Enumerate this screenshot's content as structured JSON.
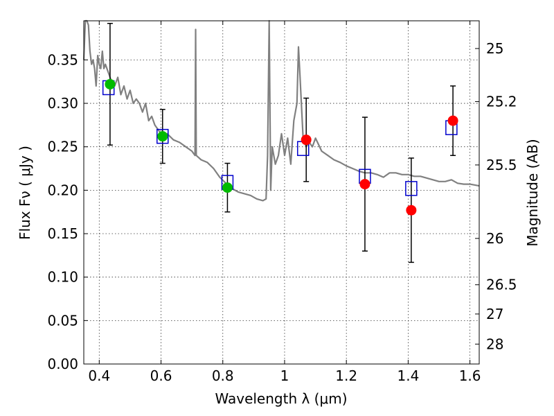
{
  "chart_data": {
    "type": "scatter",
    "xlabel": "Wavelength  λ (μm)",
    "ylabel": "Flux  Fν  ( μJy )",
    "ylabel_right": "Magnitude (AB)",
    "xlim": [
      0.35,
      1.63
    ],
    "ylim": [
      0.0,
      0.395
    ],
    "grid": true,
    "x_ticks": [
      {
        "value": 0.4,
        "label": "0.4"
      },
      {
        "value": 0.6,
        "label": "0.6"
      },
      {
        "value": 0.8,
        "label": "0.8"
      },
      {
        "value": 1.0,
        "label": "1"
      },
      {
        "value": 1.2,
        "label": "1.2"
      },
      {
        "value": 1.4,
        "label": "1.4"
      },
      {
        "value": 1.6,
        "label": "1.6"
      }
    ],
    "y_ticks": [
      {
        "value": 0.0,
        "label": "0.00"
      },
      {
        "value": 0.05,
        "label": "0.05"
      },
      {
        "value": 0.1,
        "label": "0.10"
      },
      {
        "value": 0.15,
        "label": "0.15"
      },
      {
        "value": 0.2,
        "label": "0.20"
      },
      {
        "value": 0.25,
        "label": "0.25"
      },
      {
        "value": 0.3,
        "label": "0.30"
      },
      {
        "value": 0.35,
        "label": "0.35"
      }
    ],
    "right_ticks": [
      {
        "mag": 25,
        "label": "25"
      },
      {
        "mag": 25.2,
        "label": "25.2"
      },
      {
        "mag": 25.5,
        "label": "25.5"
      },
      {
        "mag": 26,
        "label": "26"
      },
      {
        "mag": 26.5,
        "label": "26.5"
      },
      {
        "mag": 27,
        "label": "27"
      },
      {
        "mag": 28,
        "label": "28"
      }
    ],
    "series": [
      {
        "kind": "model_spectrum",
        "color": "#808080",
        "points": [
          [
            0.35,
            0.35
          ],
          [
            0.355,
            0.4
          ],
          [
            0.36,
            0.42
          ],
          [
            0.365,
            0.39
          ],
          [
            0.37,
            0.36
          ],
          [
            0.375,
            0.345
          ],
          [
            0.38,
            0.35
          ],
          [
            0.385,
            0.34
          ],
          [
            0.39,
            0.32
          ],
          [
            0.395,
            0.355
          ],
          [
            0.4,
            0.345
          ],
          [
            0.405,
            0.34
          ],
          [
            0.41,
            0.36
          ],
          [
            0.415,
            0.34
          ],
          [
            0.42,
            0.345
          ],
          [
            0.43,
            0.335
          ],
          [
            0.44,
            0.325
          ],
          [
            0.45,
            0.32
          ],
          [
            0.46,
            0.33
          ],
          [
            0.47,
            0.31
          ],
          [
            0.48,
            0.32
          ],
          [
            0.49,
            0.305
          ],
          [
            0.5,
            0.315
          ],
          [
            0.51,
            0.3
          ],
          [
            0.52,
            0.305
          ],
          [
            0.53,
            0.3
          ],
          [
            0.54,
            0.29
          ],
          [
            0.55,
            0.3
          ],
          [
            0.56,
            0.28
          ],
          [
            0.57,
            0.285
          ],
          [
            0.58,
            0.275
          ],
          [
            0.59,
            0.27
          ],
          [
            0.6,
            0.265
          ],
          [
            0.62,
            0.265
          ],
          [
            0.64,
            0.258
          ],
          [
            0.66,
            0.255
          ],
          [
            0.68,
            0.25
          ],
          [
            0.7,
            0.245
          ],
          [
            0.71,
            0.24
          ],
          [
            0.712,
            0.385
          ],
          [
            0.714,
            0.24
          ],
          [
            0.73,
            0.235
          ],
          [
            0.75,
            0.232
          ],
          [
            0.77,
            0.225
          ],
          [
            0.79,
            0.215
          ],
          [
            0.81,
            0.208
          ],
          [
            0.83,
            0.202
          ],
          [
            0.85,
            0.198
          ],
          [
            0.87,
            0.196
          ],
          [
            0.89,
            0.194
          ],
          [
            0.91,
            0.19
          ],
          [
            0.93,
            0.188
          ],
          [
            0.94,
            0.19
          ],
          [
            0.945,
            0.24
          ],
          [
            0.95,
            0.4
          ],
          [
            0.955,
            0.2
          ],
          [
            0.96,
            0.25
          ],
          [
            0.97,
            0.23
          ],
          [
            0.98,
            0.24
          ],
          [
            0.99,
            0.265
          ],
          [
            1.0,
            0.24
          ],
          [
            1.01,
            0.26
          ],
          [
            1.02,
            0.23
          ],
          [
            1.03,
            0.28
          ],
          [
            1.04,
            0.3
          ],
          [
            1.045,
            0.365
          ],
          [
            1.05,
            0.33
          ],
          [
            1.06,
            0.26
          ],
          [
            1.07,
            0.25
          ],
          [
            1.08,
            0.255
          ],
          [
            1.09,
            0.25
          ],
          [
            1.1,
            0.26
          ],
          [
            1.12,
            0.245
          ],
          [
            1.14,
            0.24
          ],
          [
            1.16,
            0.235
          ],
          [
            1.18,
            0.232
          ],
          [
            1.2,
            0.228
          ],
          [
            1.22,
            0.225
          ],
          [
            1.24,
            0.222
          ],
          [
            1.26,
            0.22
          ],
          [
            1.28,
            0.22
          ],
          [
            1.3,
            0.218
          ],
          [
            1.32,
            0.215
          ],
          [
            1.34,
            0.22
          ],
          [
            1.36,
            0.22
          ],
          [
            1.38,
            0.218
          ],
          [
            1.4,
            0.218
          ],
          [
            1.42,
            0.216
          ],
          [
            1.44,
            0.216
          ],
          [
            1.46,
            0.214
          ],
          [
            1.48,
            0.212
          ],
          [
            1.5,
            0.21
          ],
          [
            1.52,
            0.21
          ],
          [
            1.54,
            0.212
          ],
          [
            1.56,
            0.208
          ],
          [
            1.58,
            0.207
          ],
          [
            1.6,
            0.207
          ],
          [
            1.63,
            0.205
          ]
        ]
      },
      {
        "kind": "model_photometry",
        "marker": "open-square",
        "color": "#0000cc",
        "x": [
          0.43,
          0.605,
          0.815,
          1.06,
          1.26,
          1.41,
          1.54
        ],
        "y": [
          0.318,
          0.262,
          0.209,
          0.248,
          0.216,
          0.202,
          0.272
        ]
      },
      {
        "kind": "observed_optical",
        "marker": "filled-circle",
        "color": "#00bb00",
        "x": [
          0.435,
          0.605,
          0.815
        ],
        "y": [
          0.322,
          0.262,
          0.203
        ],
        "yerr": [
          0.07,
          0.031,
          0.028
        ]
      },
      {
        "kind": "observed_nir",
        "marker": "filled-circle",
        "color": "#ff0000",
        "x": [
          1.07,
          1.26,
          1.41,
          1.545
        ],
        "y": [
          0.258,
          0.207,
          0.177,
          0.28
        ],
        "yerr": [
          0.048,
          0.077,
          0.06,
          0.04
        ]
      }
    ]
  }
}
